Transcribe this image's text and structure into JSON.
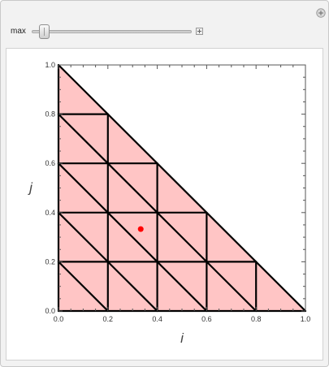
{
  "control": {
    "slider_label": "max",
    "slider_value": 0.05
  },
  "icons": {
    "reset": "plus-circle-icon",
    "expand": "plus-square-icon"
  },
  "colors": {
    "triangle_fill": "#ffc5c5",
    "mesh_line": "#000000",
    "point": "#ff0000"
  },
  "chart_data": {
    "type": "scatter",
    "title": "",
    "xlabel": "i",
    "ylabel": "j",
    "xlim": [
      0,
      1
    ],
    "ylim": [
      0,
      1
    ],
    "x_ticks": [
      "0.0",
      "0.2",
      "0.4",
      "0.6",
      "0.8",
      "1.0"
    ],
    "y_ticks": [
      "0.0",
      "0.2",
      "0.4",
      "0.6",
      "0.8",
      "1.0"
    ],
    "region": [
      [
        0,
        0
      ],
      [
        1,
        0
      ],
      [
        0,
        1
      ]
    ],
    "mesh_spacing": 0.2,
    "point": {
      "x": 0.333,
      "y": 0.333
    },
    "grid": false
  }
}
